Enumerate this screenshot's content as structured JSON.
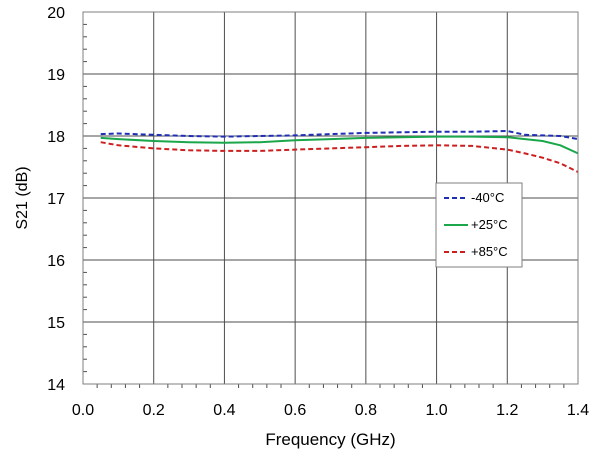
{
  "chart_data": {
    "type": "line",
    "title": "",
    "xlabel": "Frequency (GHz)",
    "ylabel": "S21 (dB)",
    "xlim": [
      0.0,
      1.4
    ],
    "ylim": [
      14,
      20
    ],
    "xticks": [
      0.0,
      0.2,
      0.4,
      0.6,
      0.8,
      1.0,
      1.2,
      1.4
    ],
    "xtick_labels": [
      "0.0",
      "0.2",
      "0.4",
      "0.6",
      "0.8",
      "1.0",
      "1.2",
      "1.4"
    ],
    "yticks": [
      14,
      15,
      16,
      17,
      18,
      19,
      20
    ],
    "ytick_labels": [
      "14",
      "15",
      "16",
      "17",
      "18",
      "19",
      "20"
    ],
    "grid": true,
    "legend_position": "right-center",
    "series": [
      {
        "name": "-40°C",
        "color": "#1f2fb5",
        "dash": "dashed",
        "x": [
          0.05,
          0.1,
          0.2,
          0.3,
          0.4,
          0.5,
          0.6,
          0.7,
          0.8,
          0.9,
          1.0,
          1.1,
          1.2,
          1.25,
          1.3,
          1.35,
          1.4
        ],
        "y": [
          18.03,
          18.04,
          18.02,
          18.0,
          17.99,
          18.0,
          18.01,
          18.03,
          18.05,
          18.06,
          18.07,
          18.07,
          18.08,
          18.02,
          18.01,
          18.0,
          17.95
        ]
      },
      {
        "name": "+25°C",
        "color": "#1aa64a",
        "dash": "solid",
        "x": [
          0.05,
          0.1,
          0.2,
          0.3,
          0.4,
          0.5,
          0.6,
          0.7,
          0.8,
          0.9,
          1.0,
          1.1,
          1.2,
          1.25,
          1.3,
          1.35,
          1.4
        ],
        "y": [
          17.97,
          17.95,
          17.92,
          17.9,
          17.89,
          17.9,
          17.93,
          17.95,
          17.97,
          17.98,
          17.99,
          17.99,
          17.98,
          17.95,
          17.92,
          17.85,
          17.72
        ]
      },
      {
        "name": "+85°C",
        "color": "#cc1f1f",
        "dash": "dashed",
        "x": [
          0.05,
          0.1,
          0.2,
          0.3,
          0.4,
          0.5,
          0.6,
          0.7,
          0.8,
          0.9,
          1.0,
          1.1,
          1.2,
          1.25,
          1.3,
          1.35,
          1.4
        ],
        "y": [
          17.9,
          17.85,
          17.8,
          17.77,
          17.76,
          17.76,
          17.78,
          17.8,
          17.82,
          17.84,
          17.85,
          17.84,
          17.78,
          17.72,
          17.65,
          17.56,
          17.42
        ]
      }
    ]
  }
}
